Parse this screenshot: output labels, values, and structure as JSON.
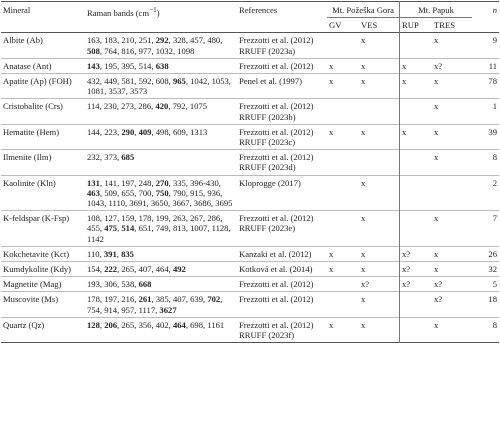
{
  "header": {
    "mineral": "Mineral",
    "raman": {
      "before": "Raman bands (cm",
      "sup": "−1",
      "after": ")"
    },
    "references": "References",
    "group1": "Mt. Požeška Gora",
    "group2": "Mt. Papuk",
    "gv": "GV",
    "ves": "VES",
    "rup": "RUP",
    "tres": "TRES",
    "n": "n"
  },
  "rows": [
    {
      "mineral": "Albite (Ab)",
      "bands": [
        "163",
        "183",
        "210",
        "251",
        {
          "text": "292",
          "bold": true
        },
        "328",
        "457",
        "480",
        {
          "text": "508",
          "bold": true
        },
        "764",
        "816",
        "977",
        "1032",
        "1098"
      ],
      "references": [
        "Frezzotti et al. (2012)",
        "RRUFF (2023a)"
      ],
      "gv": null,
      "ves": "x",
      "rup": null,
      "tres": "x",
      "n": 9
    },
    {
      "mineral": "Anatase (Ant)",
      "bands": [
        {
          "text": "143",
          "bold": true
        },
        "195",
        "395",
        "514",
        {
          "text": "638",
          "bold": true
        }
      ],
      "references": [
        "Frezzotti et al. (2012)"
      ],
      "gv": "x",
      "ves": "x",
      "rup": "x",
      "tres": "x?",
      "n": 11
    },
    {
      "mineral": "Apatite (Ap) (FOH)",
      "bands": [
        "432",
        "449",
        "581",
        "592",
        "608",
        {
          "text": "965",
          "bold": true
        },
        "1042",
        "1053",
        "1081",
        "3537",
        "3573"
      ],
      "references": [
        "Penel et al. (1997)"
      ],
      "gv": "x",
      "ves": "x",
      "rup": "x",
      "tres": "x",
      "n": 78
    },
    {
      "mineral": "Cristobalite (Crs)",
      "bands": [
        "114",
        "230",
        "273",
        "286",
        {
          "text": "420",
          "bold": true
        },
        "792",
        "1075"
      ],
      "references": [
        "Frezzotti et al. (2012)",
        "RRUFF (2023b)"
      ],
      "gv": null,
      "ves": null,
      "rup": null,
      "tres": "x",
      "n": 1
    },
    {
      "mineral": "Hematite (Hem)",
      "bands": [
        "144",
        "223",
        {
          "text": "290",
          "bold": true
        },
        {
          "text": "409",
          "bold": true
        },
        "498",
        "609",
        "1313"
      ],
      "references": [
        "Frezzotti et al. (2012)",
        "RRUFF (2023c)"
      ],
      "gv": "x",
      "ves": "x",
      "rup": "x",
      "tres": "x",
      "n": 39
    },
    {
      "mineral": "Ilmenite (Ilm)",
      "bands": [
        "232",
        "373",
        {
          "text": "685",
          "bold": true
        }
      ],
      "references": [
        "Frezzotti et al. (2012)",
        "RRUFF (2023d)"
      ],
      "gv": null,
      "ves": null,
      "rup": null,
      "tres": "x",
      "n": 8
    },
    {
      "mineral": "Kaolinite (Kln)",
      "bands": [
        {
          "text": "131",
          "bold": true
        },
        "141",
        "197",
        "248",
        {
          "text": "270",
          "bold": true
        },
        "335",
        "396-430",
        {
          "text": "463",
          "bold": true
        },
        "509",
        "655",
        "700",
        {
          "text": "750",
          "bold": true
        },
        "790",
        "915",
        "936",
        "1043",
        "1110",
        "3691",
        "3650",
        "3667",
        "3686",
        "3695"
      ],
      "references": [
        "Kloprogge (2017)"
      ],
      "gv": null,
      "ves": "x",
      "rup": null,
      "tres": null,
      "n": 2
    },
    {
      "mineral": "K-feldspar (K-Fsp)",
      "bands": [
        "108",
        "127",
        "159",
        "178",
        "199",
        "263",
        "267",
        "286",
        "455",
        {
          "text": "475",
          "bold": true
        },
        {
          "text": "514",
          "bold": true
        },
        "651",
        "749",
        "813",
        "1007",
        "1128",
        "1142"
      ],
      "references": [
        "Frezzotti et al. (2012)",
        "RRUFF (2023e)"
      ],
      "gv": null,
      "ves": "x",
      "rup": null,
      "tres": "x",
      "n": 7
    },
    {
      "mineral": "Kokchetavite (Kct)",
      "bands": [
        "110",
        {
          "text": "391",
          "bold": true
        },
        {
          "text": "835",
          "bold": true
        }
      ],
      "references": [
        "Kanzaki et al. (2012)"
      ],
      "gv": "x",
      "ves": "x",
      "rup": "x?",
      "tres": "x",
      "n": 26
    },
    {
      "mineral": "Kumdykolite (Kdy)",
      "bands": [
        "154",
        {
          "text": "222",
          "bold": true
        },
        "265",
        "407",
        "464",
        {
          "text": "492",
          "bold": true
        }
      ],
      "references": [
        "Kotková et al. (2014)"
      ],
      "gv": "x",
      "ves": "x",
      "rup": "x?",
      "tres": "x",
      "n": 32
    },
    {
      "mineral": "Magnetite (Mag)",
      "bands": [
        "193",
        "306",
        "538",
        {
          "text": "668",
          "bold": true
        }
      ],
      "references": [
        "Frezzotti et al. (2012)"
      ],
      "gv": null,
      "ves": "x?",
      "rup": "x?",
      "tres": "x?",
      "n": 5
    },
    {
      "mineral": "Muscovite (Ms)",
      "bands": [
        "178",
        "197",
        "216",
        {
          "text": "261",
          "bold": true
        },
        "385",
        "407",
        "639",
        {
          "text": "702",
          "bold": true
        },
        "754",
        "914",
        "957",
        "1117",
        {
          "text": "3627",
          "bold": true
        }
      ],
      "references": [
        "Frezzotti et al. (2012)"
      ],
      "gv": null,
      "ves": "x",
      "rup": null,
      "tres": "x?",
      "n": 18
    },
    {
      "mineral": "Quartz (Qz)",
      "bands": [
        {
          "text": "128",
          "bold": true
        },
        {
          "text": "206",
          "bold": true
        },
        "265",
        "356",
        "402",
        {
          "text": "464",
          "bold": true
        },
        "698",
        "1161"
      ],
      "references": [
        "Frezzotti et al. (2012)",
        "RRUFF (2023f)"
      ],
      "gv": "x",
      "ves": "x",
      "rup": null,
      "tres": "x",
      "n": 8
    }
  ]
}
